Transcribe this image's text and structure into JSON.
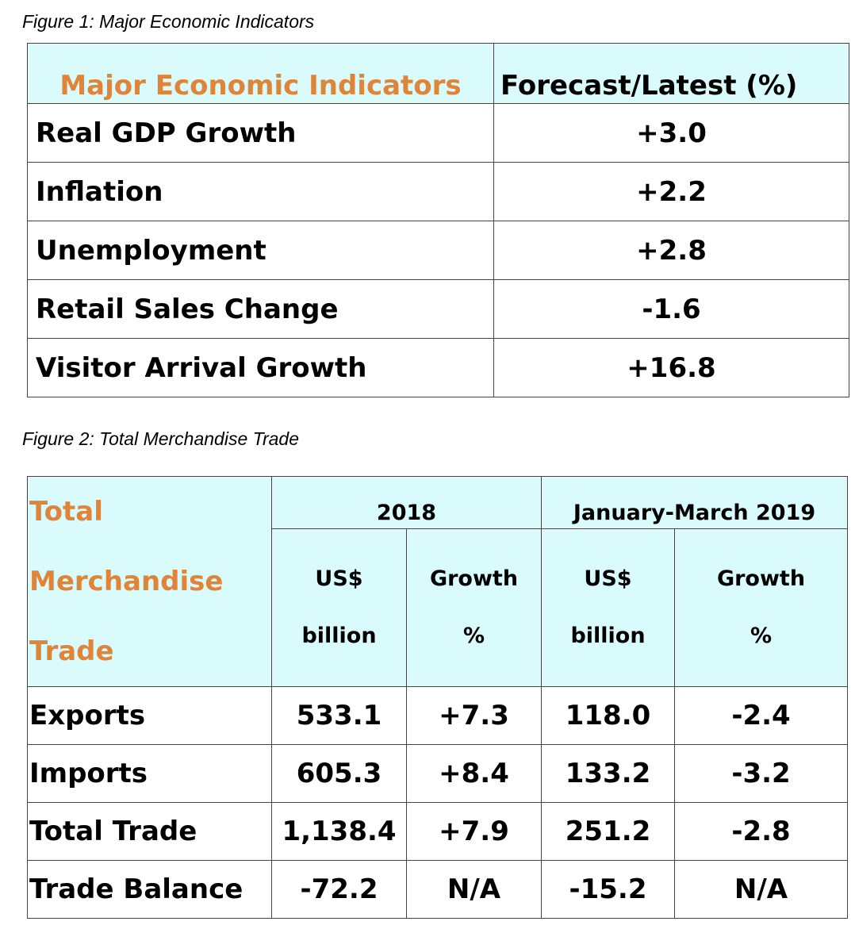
{
  "figure1": {
    "caption": "Figure 1: Major Economic Indicators",
    "header": {
      "col1": "Major Economic Indicators",
      "col2": "Forecast/Latest (%)"
    },
    "rows": [
      {
        "label": "Real GDP Growth",
        "value": "+3.0"
      },
      {
        "label": "Inflation",
        "value": "+2.2"
      },
      {
        "label": "Unemployment",
        "value": "+2.8"
      },
      {
        "label": "Retail Sales Change",
        "value": "-1.6"
      },
      {
        "label": "Visitor Arrival Growth",
        "value": "+16.8"
      }
    ]
  },
  "figure2": {
    "caption": "Figure 2: Total Merchandise Trade",
    "header": {
      "title_line1": "Total",
      "title_line2": "Merchandise",
      "title_line3": "Trade",
      "period1": "2018",
      "period2": "January-March 2019",
      "usd_line1": "US$",
      "usd_line2": "billion",
      "growth_line1": "Growth",
      "growth_line2": "%"
    },
    "rows": [
      {
        "label": "Exports",
        "v2018": "533.1",
        "g2018": "+7.3",
        "v2019": "118.0",
        "g2019": "-2.4"
      },
      {
        "label": "Imports",
        "v2018": "605.3",
        "g2018": "+8.4",
        "v2019": "133.2",
        "g2019": "-3.2"
      },
      {
        "label": "Total Trade",
        "v2018": "1,138.4",
        "g2018": "+7.9",
        "v2019": "251.2",
        "g2019": "-2.8"
      },
      {
        "label": "Trade Balance",
        "v2018": "-72.2",
        "g2018": "N/A",
        "v2019": "-15.2",
        "g2019": "N/A"
      }
    ]
  }
}
